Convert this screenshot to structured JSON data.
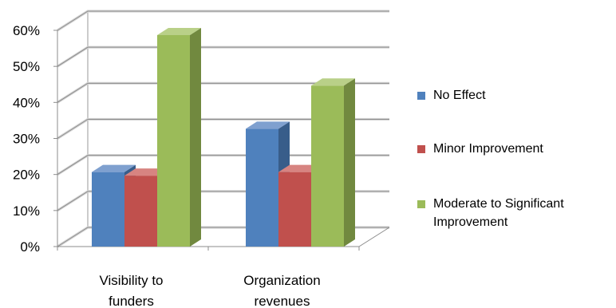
{
  "chart_data": {
    "type": "bar",
    "title": "",
    "xlabel": "",
    "ylabel": "",
    "categories": [
      "Visibility to funders",
      "Organization revenues"
    ],
    "category_label_lines": [
      [
        "Visibility to",
        "funders"
      ],
      [
        "Organization",
        "revenues"
      ]
    ],
    "series": [
      {
        "name": "No Effect",
        "values": [
          0.22,
          0.34
        ],
        "color": "#4F81BD",
        "color_side": "#385D8A",
        "color_top": "#7FA0CF"
      },
      {
        "name": "Minor Improvement",
        "values": [
          0.21,
          0.22
        ],
        "color": "#C0504D",
        "color_side": "#8C3836",
        "color_top": "#D78481"
      },
      {
        "name": "Moderate to Significant Improvement",
        "values": [
          0.6,
          0.46
        ],
        "color": "#9BBB59",
        "color_side": "#71893F",
        "color_top": "#B9D088"
      }
    ],
    "legend_label_lines": [
      [
        "No Effect"
      ],
      [
        "Minor Improvement"
      ],
      [
        "Moderate to Significant",
        "Improvement"
      ]
    ],
    "y_ticks": [
      "0%",
      "10%",
      "20%",
      "30%",
      "40%",
      "50%",
      "60%"
    ],
    "y_tick_values": [
      0,
      0.1,
      0.2,
      0.3,
      0.4,
      0.5,
      0.6
    ],
    "ylim": [
      0,
      0.6
    ],
    "grid": true,
    "legend_position": "right",
    "three_d": true
  }
}
